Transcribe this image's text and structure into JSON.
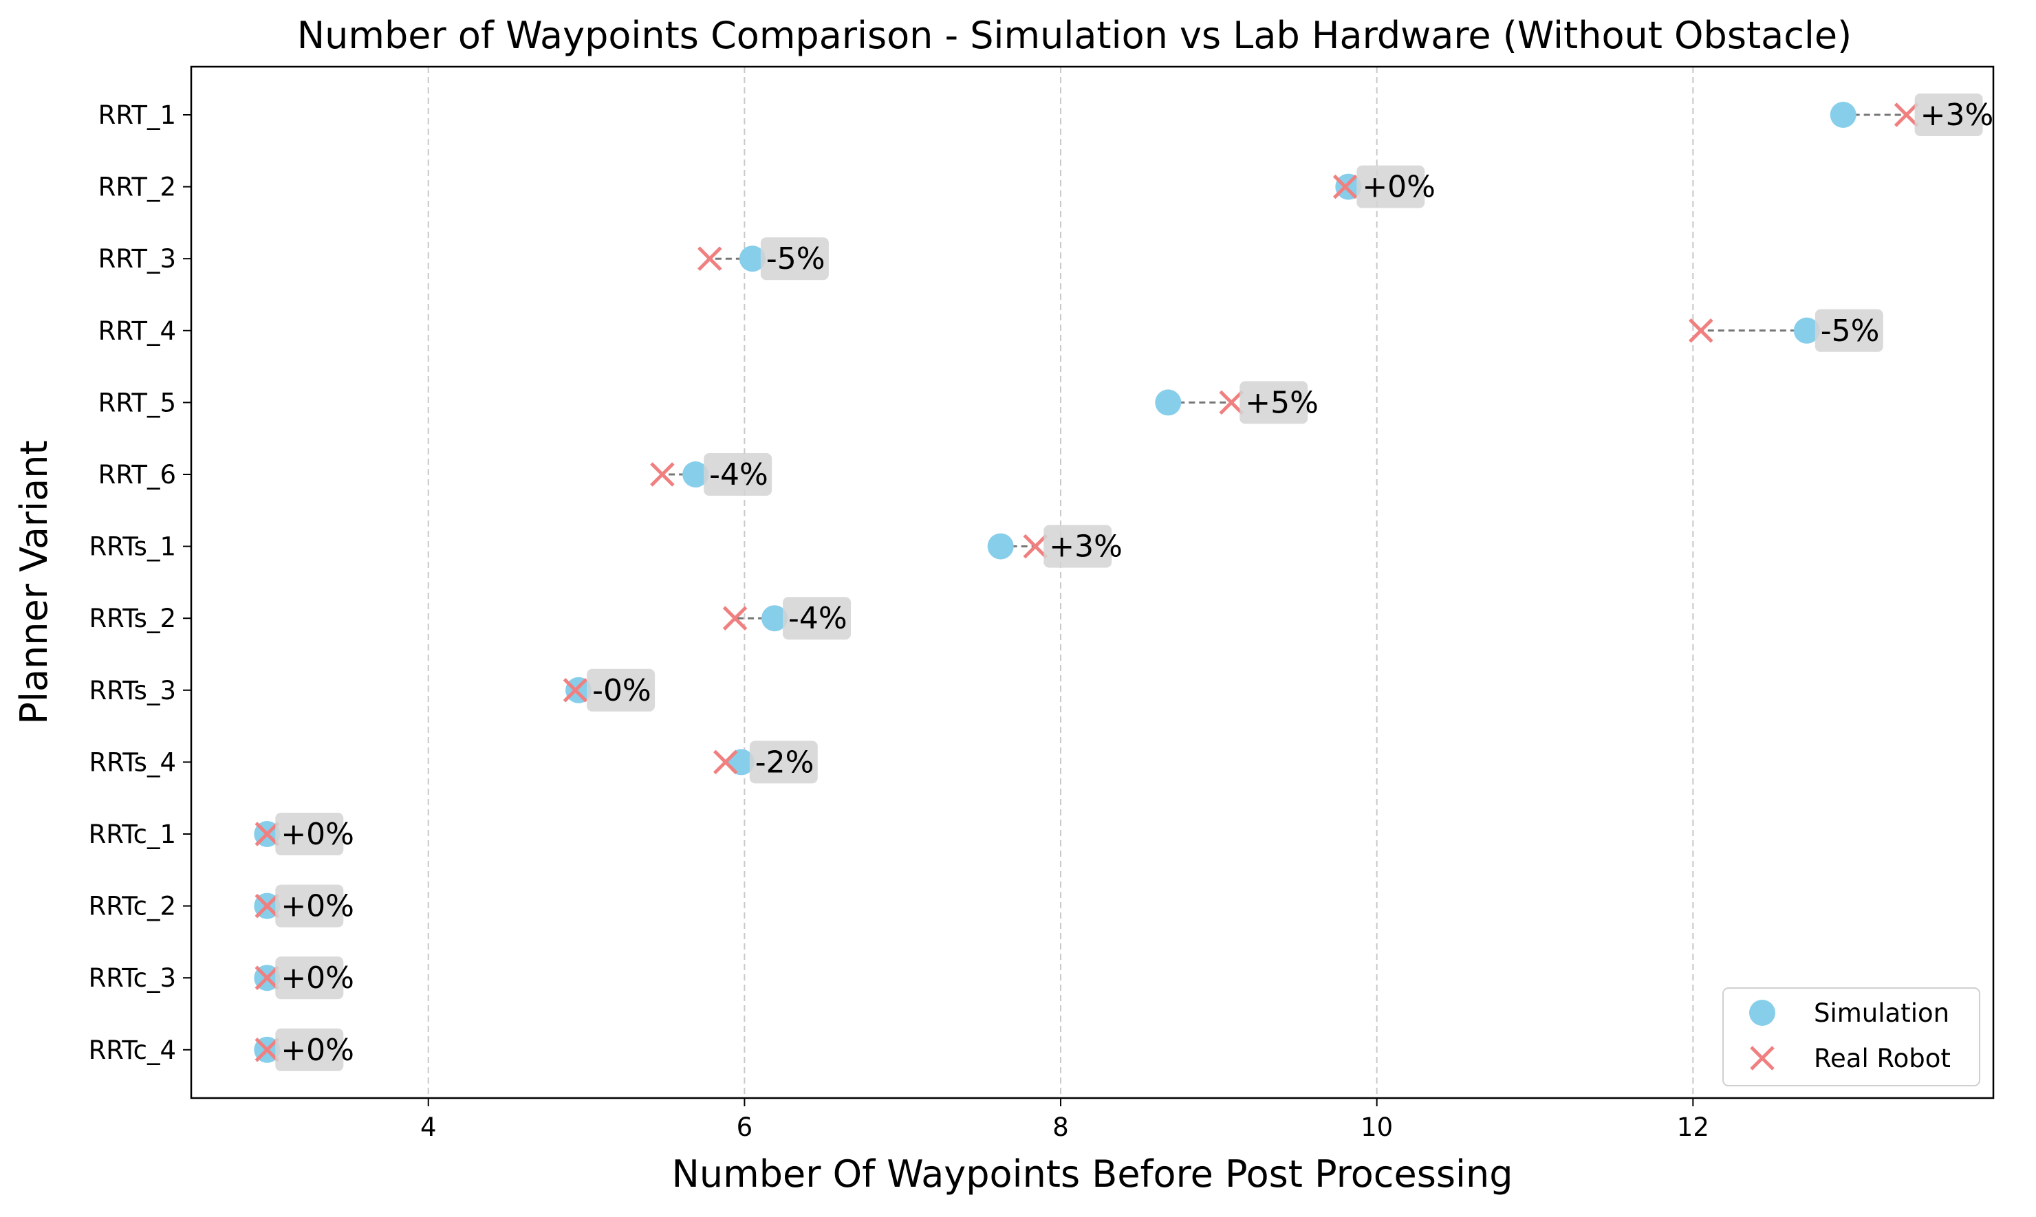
{
  "chart_data": {
    "type": "scatter",
    "title": "Number of Waypoints Comparison - Simulation vs Lab Hardware (Without Obstacle)",
    "xlabel": "Number Of Waypoints Before Post Processing",
    "ylabel": "Planner Variant",
    "xlim": [
      2.5,
      13.9
    ],
    "xticks": [
      4,
      6,
      8,
      10,
      12
    ],
    "grid": "vertical dashed",
    "legend_position": "bottom-right",
    "categories": [
      "RRT_1",
      "RRT_2",
      "RRT_3",
      "RRT_4",
      "RRT_5",
      "RRT_6",
      "RRTs_1",
      "RRTs_2",
      "RRTs_3",
      "RRTs_4",
      "RRTc_1",
      "RRTc_2",
      "RRTc_3",
      "RRTc_4"
    ],
    "series": [
      {
        "name": "Simulation",
        "marker": "circle",
        "color": "#87CEEB",
        "values": [
          12.95,
          9.82,
          6.05,
          12.72,
          8.68,
          5.69,
          7.62,
          6.19,
          4.95,
          5.98,
          2.98,
          2.98,
          2.98,
          2.98
        ]
      },
      {
        "name": "Real Robot",
        "marker": "x",
        "color": "#F08080",
        "values": [
          13.35,
          9.8,
          5.78,
          12.05,
          9.08,
          5.48,
          7.84,
          5.94,
          4.93,
          5.88,
          2.98,
          2.98,
          2.98,
          2.98
        ]
      }
    ],
    "annotations": [
      "+3%",
      "+0%",
      "-5%",
      "-5%",
      "+5%",
      "-4%",
      "+3%",
      "-4%",
      "-0%",
      "-2%",
      "+0%",
      "+0%",
      "+0%",
      "+0%"
    ]
  }
}
